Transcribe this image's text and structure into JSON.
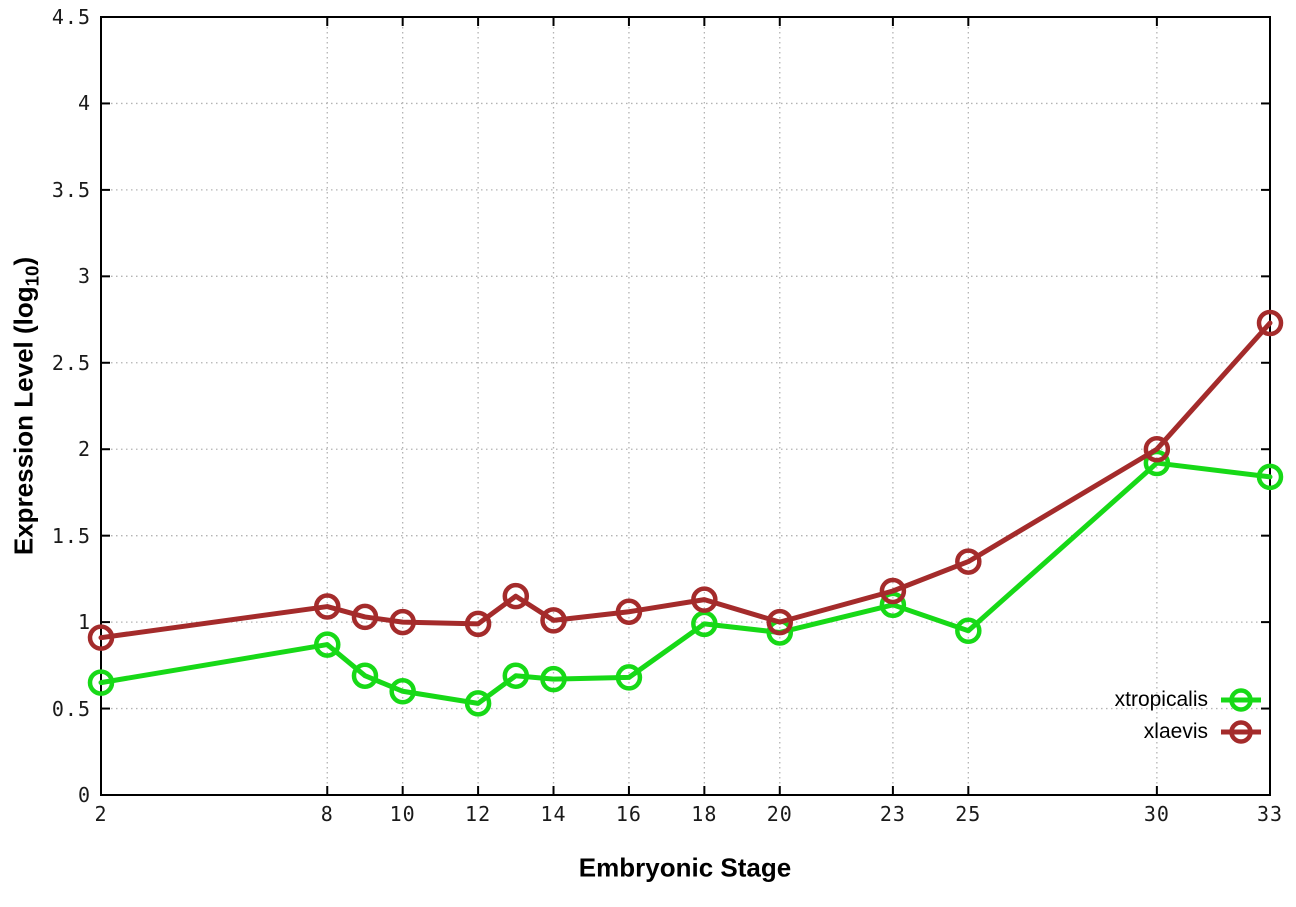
{
  "figure": {
    "background": "#ffffff",
    "x_axis_title": "Embryonic Stage",
    "y_axis_title_main": "Expression Level (log",
    "y_axis_title_sub": "10",
    "y_axis_title_close": ")"
  },
  "chart_data": {
    "type": "line",
    "title": "",
    "xlabel": "Embryonic Stage",
    "ylabel": "Expression Level (log10)",
    "xlim": [
      2,
      33
    ],
    "ylim": [
      0,
      4.5
    ],
    "grid": true,
    "grid_style": "dotted",
    "legend_position": "inside-bottom-right",
    "marker": "open-circle",
    "x_ticks": [
      "2",
      "8",
      "10",
      "12",
      "14",
      "16",
      "18",
      "20",
      "23",
      "25",
      "30",
      "33"
    ],
    "y_ticks": [
      "0",
      "0.5",
      "1",
      "1.5",
      "2",
      "2.5",
      "3",
      "3.5",
      "4",
      "4.5"
    ],
    "x": [
      2,
      8,
      9,
      10,
      12,
      13,
      14,
      16,
      18,
      20,
      23,
      25,
      30,
      33
    ],
    "series": [
      {
        "name": "xtropicalis",
        "color": "#17d917",
        "values": [
          0.65,
          0.87,
          0.69,
          0.6,
          0.53,
          0.69,
          0.67,
          0.68,
          0.99,
          0.94,
          1.1,
          0.95,
          1.92,
          1.84
        ]
      },
      {
        "name": "xlaevis",
        "color": "#a42b2b",
        "values": [
          0.91,
          1.09,
          1.03,
          1.0,
          0.99,
          1.15,
          1.01,
          1.06,
          1.13,
          1.0,
          1.18,
          1.35,
          2.0,
          2.73
        ]
      }
    ],
    "colors": {
      "grid": "#b3b3b3",
      "axis": "#000000",
      "text": "#1a1a1a"
    }
  }
}
